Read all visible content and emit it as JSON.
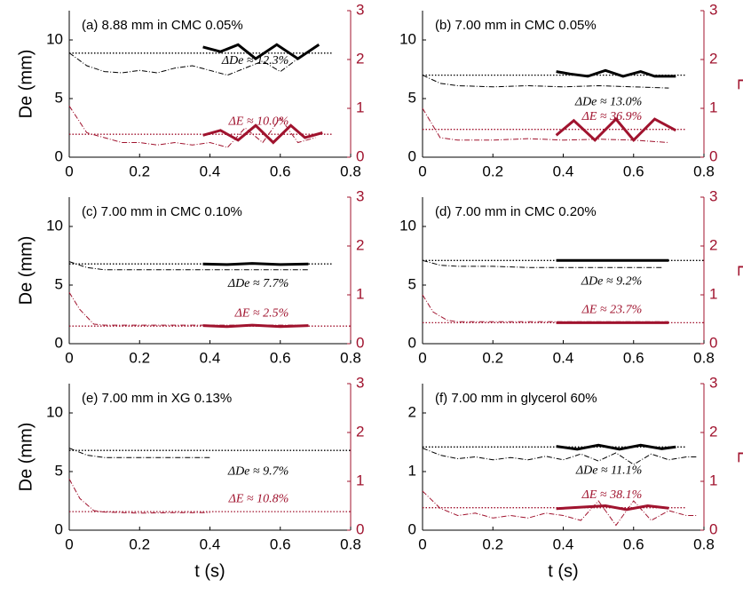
{
  "chart_data": [
    {
      "type": "line",
      "title": "(a) 8.88 mm in CMC 0.05%",
      "ylabel": "De (mm)",
      "xlim": [
        0,
        0.8
      ],
      "xticks": [
        0,
        0.2,
        0.4,
        0.6,
        0.8
      ],
      "ylim": [
        0,
        12.5
      ],
      "yticks": [
        0,
        5,
        10
      ],
      "y2lim": [
        0,
        3
      ],
      "y2ticks": [
        0,
        1,
        2,
        3
      ],
      "annotations": [
        "ΔDe ≈ 12.3%",
        "ΔE ≈ 10.0%"
      ],
      "series": [
        {
          "axis": "y",
          "style": "dashdot",
          "color": "#000000",
          "x": [
            0,
            0.05,
            0.1,
            0.15,
            0.2,
            0.25,
            0.3,
            0.35,
            0.4,
            0.45,
            0.5,
            0.55,
            0.6,
            0.65,
            0.7
          ],
          "values": [
            8.9,
            7.8,
            7.3,
            7.2,
            7.4,
            7.2,
            7.6,
            7.8,
            7.4,
            7.0,
            7.6,
            8.2,
            7.3,
            8.4,
            9.4
          ]
        },
        {
          "axis": "y",
          "style": "dotted",
          "color": "#000000",
          "x": [
            0,
            0.75
          ],
          "values": [
            8.88,
            8.88
          ]
        },
        {
          "axis": "y",
          "style": "thick",
          "color": "#000000",
          "x": [
            0.38,
            0.43,
            0.48,
            0.53,
            0.59,
            0.65,
            0.71
          ],
          "values": [
            9.4,
            9.0,
            9.6,
            8.4,
            9.6,
            8.4,
            9.6
          ]
        },
        {
          "axis": "y2",
          "style": "dashdot",
          "color": "#a0132e",
          "x": [
            0,
            0.05,
            0.1,
            0.15,
            0.2,
            0.25,
            0.3,
            0.35,
            0.4,
            0.45,
            0.5,
            0.55,
            0.6,
            0.65,
            0.7
          ],
          "values": [
            1.05,
            0.5,
            0.4,
            0.3,
            0.3,
            0.25,
            0.3,
            0.25,
            0.3,
            0.2,
            0.6,
            0.3,
            0.8,
            0.3,
            0.4
          ]
        },
        {
          "axis": "y2",
          "style": "dotted",
          "color": "#a0132e",
          "x": [
            0,
            0.75
          ],
          "values": [
            0.47,
            0.47
          ]
        },
        {
          "axis": "y2",
          "style": "thick",
          "color": "#a0132e",
          "x": [
            0.38,
            0.43,
            0.48,
            0.53,
            0.58,
            0.63,
            0.67,
            0.72
          ],
          "values": [
            0.45,
            0.55,
            0.35,
            0.65,
            0.3,
            0.65,
            0.4,
            0.5
          ]
        }
      ]
    },
    {
      "type": "line",
      "title": "(b) 7.00 mm in CMC 0.05%",
      "y2label": "E",
      "xlim": [
        0,
        0.8
      ],
      "xticks": [
        0,
        0.2,
        0.4,
        0.6,
        0.8
      ],
      "ylim": [
        0,
        12.5
      ],
      "yticks": [
        0,
        5,
        10
      ],
      "y2lim": [
        0,
        3
      ],
      "y2ticks": [
        0,
        1,
        2,
        3
      ],
      "annotations": [
        "ΔDe ≈ 13.0%",
        "ΔE ≈ 36.9%"
      ],
      "series": [
        {
          "axis": "y",
          "style": "dashdot",
          "color": "#000000",
          "x": [
            0,
            0.05,
            0.1,
            0.2,
            0.3,
            0.4,
            0.5,
            0.6,
            0.7
          ],
          "values": [
            7.0,
            6.3,
            6.1,
            6.0,
            6.1,
            6.0,
            6.1,
            6.0,
            5.9
          ]
        },
        {
          "axis": "y",
          "style": "dotted",
          "color": "#000000",
          "x": [
            0,
            0.75
          ],
          "values": [
            7.0,
            7.0
          ]
        },
        {
          "axis": "y",
          "style": "thick",
          "color": "#000000",
          "x": [
            0.38,
            0.42,
            0.47,
            0.52,
            0.57,
            0.62,
            0.66,
            0.72
          ],
          "values": [
            7.3,
            7.1,
            6.9,
            7.4,
            6.9,
            7.3,
            6.9,
            6.9
          ]
        },
        {
          "axis": "y2",
          "style": "dashdot",
          "color": "#a0132e",
          "x": [
            0,
            0.05,
            0.1,
            0.2,
            0.3,
            0.4,
            0.5,
            0.6,
            0.7
          ],
          "values": [
            1.0,
            0.4,
            0.35,
            0.35,
            0.38,
            0.35,
            0.37,
            0.35,
            0.3
          ]
        },
        {
          "axis": "y2",
          "style": "dotted",
          "color": "#a0132e",
          "x": [
            0,
            0.75
          ],
          "values": [
            0.57,
            0.57
          ]
        },
        {
          "axis": "y2",
          "style": "thick",
          "color": "#a0132e",
          "x": [
            0.38,
            0.43,
            0.49,
            0.55,
            0.6,
            0.66,
            0.72
          ],
          "values": [
            0.45,
            0.75,
            0.35,
            0.78,
            0.35,
            0.78,
            0.55
          ]
        }
      ]
    },
    {
      "type": "line",
      "title": "(c) 7.00 mm in CMC 0.10%",
      "ylabel": "De (mm)",
      "xlim": [
        0,
        0.8
      ],
      "xticks": [
        0,
        0.2,
        0.4,
        0.6,
        0.8
      ],
      "ylim": [
        0,
        12.5
      ],
      "yticks": [
        0,
        5,
        10
      ],
      "y2lim": [
        0,
        3
      ],
      "y2ticks": [
        0,
        1,
        2,
        3
      ],
      "annotations": [
        "ΔDe ≈ 7.7%",
        "ΔE ≈ 2.5%"
      ],
      "series": [
        {
          "axis": "y",
          "style": "dashdot",
          "color": "#000000",
          "x": [
            0,
            0.05,
            0.1,
            0.2,
            0.3,
            0.4,
            0.5,
            0.6,
            0.68
          ],
          "values": [
            7.0,
            6.5,
            6.3,
            6.3,
            6.3,
            6.3,
            6.3,
            6.3,
            6.3
          ]
        },
        {
          "axis": "y",
          "style": "dotted",
          "color": "#000000",
          "x": [
            0,
            0.75
          ],
          "values": [
            6.8,
            6.8
          ]
        },
        {
          "axis": "y",
          "style": "thick",
          "color": "#000000",
          "x": [
            0.38,
            0.45,
            0.52,
            0.6,
            0.68
          ],
          "values": [
            6.8,
            6.75,
            6.85,
            6.75,
            6.8
          ]
        },
        {
          "axis": "y2",
          "style": "dashdot",
          "color": "#a0132e",
          "x": [
            0,
            0.03,
            0.07,
            0.1,
            0.2,
            0.3,
            0.4,
            0.5,
            0.6,
            0.68
          ],
          "values": [
            1.05,
            0.7,
            0.4,
            0.38,
            0.38,
            0.38,
            0.38,
            0.38,
            0.38,
            0.38
          ]
        },
        {
          "axis": "y2",
          "style": "dotted",
          "color": "#a0132e",
          "x": [
            0,
            0.8
          ],
          "values": [
            0.36,
            0.36
          ]
        },
        {
          "axis": "y2",
          "style": "thick",
          "color": "#a0132e",
          "x": [
            0.38,
            0.45,
            0.52,
            0.6,
            0.68
          ],
          "values": [
            0.37,
            0.35,
            0.38,
            0.35,
            0.37
          ]
        }
      ]
    },
    {
      "type": "line",
      "title": "(d) 7.00 mm in CMC 0.20%",
      "y2label": "E",
      "xlim": [
        0,
        0.8
      ],
      "xticks": [
        0,
        0.2,
        0.4,
        0.6,
        0.8
      ],
      "ylim": [
        0,
        12.5
      ],
      "yticks": [
        0,
        5,
        10
      ],
      "y2lim": [
        0,
        3
      ],
      "y2ticks": [
        0,
        1,
        2,
        3
      ],
      "annotations": [
        "ΔDe ≈ 9.2%",
        "ΔE ≈ 23.7%"
      ],
      "series": [
        {
          "axis": "y",
          "style": "dashdot",
          "color": "#000000",
          "x": [
            0,
            0.05,
            0.1,
            0.2,
            0.3,
            0.4,
            0.5,
            0.6,
            0.68
          ],
          "values": [
            7.1,
            6.7,
            6.6,
            6.6,
            6.5,
            6.5,
            6.5,
            6.5,
            6.5
          ]
        },
        {
          "axis": "y",
          "style": "dotted",
          "color": "#000000",
          "x": [
            0,
            0.8
          ],
          "values": [
            7.1,
            7.1
          ]
        },
        {
          "axis": "y",
          "style": "thick",
          "color": "#000000",
          "x": [
            0.38,
            0.7
          ],
          "values": [
            7.1,
            7.1
          ]
        },
        {
          "axis": "y2",
          "style": "dashdot",
          "color": "#a0132e",
          "x": [
            0,
            0.03,
            0.07,
            0.1,
            0.2,
            0.3,
            0.4,
            0.5,
            0.6,
            0.7
          ],
          "values": [
            1.0,
            0.65,
            0.48,
            0.45,
            0.45,
            0.45,
            0.45,
            0.45,
            0.45,
            0.45
          ]
        },
        {
          "axis": "y2",
          "style": "dotted",
          "color": "#a0132e",
          "x": [
            0,
            0.8
          ],
          "values": [
            0.43,
            0.43
          ]
        },
        {
          "axis": "y2",
          "style": "thick",
          "color": "#a0132e",
          "x": [
            0.38,
            0.7
          ],
          "values": [
            0.43,
            0.43
          ]
        }
      ]
    },
    {
      "type": "line",
      "title": "(e) 7.00 mm in XG 0.13%",
      "ylabel": "De (mm)",
      "xlabel": "t (s)",
      "xlim": [
        0,
        0.8
      ],
      "xticks": [
        0,
        0.2,
        0.4,
        0.6,
        0.8
      ],
      "ylim": [
        0,
        12.5
      ],
      "yticks": [
        0,
        5,
        10
      ],
      "y2lim": [
        0,
        3
      ],
      "y2ticks": [
        0,
        1,
        2,
        3
      ],
      "annotations": [
        "ΔDe ≈ 9.7%",
        "ΔE ≈ 10.8%"
      ],
      "series": [
        {
          "axis": "y",
          "style": "dashdot",
          "color": "#000000",
          "x": [
            0,
            0.05,
            0.1,
            0.2,
            0.3,
            0.4
          ],
          "values": [
            7.0,
            6.4,
            6.2,
            6.2,
            6.2,
            6.2
          ]
        },
        {
          "axis": "y",
          "style": "dotted",
          "color": "#000000",
          "x": [
            0,
            0.8
          ],
          "values": [
            6.8,
            6.8
          ]
        },
        {
          "axis": "y2",
          "style": "dashdot",
          "color": "#a0132e",
          "x": [
            0,
            0.03,
            0.07,
            0.1,
            0.2,
            0.3,
            0.4
          ],
          "values": [
            1.05,
            0.65,
            0.4,
            0.37,
            0.35,
            0.36,
            0.36
          ]
        },
        {
          "axis": "y2",
          "style": "dotted",
          "color": "#a0132e",
          "x": [
            0,
            0.8
          ],
          "values": [
            0.38,
            0.38
          ]
        }
      ]
    },
    {
      "type": "line",
      "title": "(f) 7.00 mm in glycerol 60%",
      "y2label": "E",
      "xlabel": "t (s)",
      "xlim": [
        0,
        0.8
      ],
      "xticks": [
        0,
        0.2,
        0.4,
        0.6,
        0.8
      ],
      "ylim": [
        0,
        2.5
      ],
      "yticks": [
        0,
        1,
        2
      ],
      "y2lim": [
        0,
        3
      ],
      "y2ticks": [
        0,
        1,
        2,
        3
      ],
      "annotations": [
        "ΔDe ≈ 11.1%",
        "ΔE ≈ 38.1%"
      ],
      "series": [
        {
          "axis": "y",
          "style": "dashdot",
          "color": "#000000",
          "x": [
            0,
            0.05,
            0.1,
            0.15,
            0.2,
            0.25,
            0.3,
            0.35,
            0.4,
            0.45,
            0.5,
            0.55,
            0.6,
            0.65,
            0.7,
            0.75,
            0.78
          ],
          "values": [
            1.4,
            1.28,
            1.22,
            1.25,
            1.2,
            1.24,
            1.2,
            1.26,
            1.2,
            1.3,
            1.18,
            1.32,
            1.12,
            1.3,
            1.2,
            1.25,
            1.25
          ]
        },
        {
          "axis": "y",
          "style": "dotted",
          "color": "#000000",
          "x": [
            0,
            0.75
          ],
          "values": [
            1.42,
            1.42
          ]
        },
        {
          "axis": "y",
          "style": "thick",
          "color": "#000000",
          "x": [
            0.38,
            0.44,
            0.5,
            0.56,
            0.62,
            0.68,
            0.72
          ],
          "values": [
            1.43,
            1.38,
            1.45,
            1.38,
            1.45,
            1.39,
            1.42
          ]
        },
        {
          "axis": "y2",
          "style": "dashdot",
          "color": "#a0132e",
          "x": [
            0,
            0.05,
            0.1,
            0.15,
            0.2,
            0.25,
            0.3,
            0.35,
            0.4,
            0.45,
            0.5,
            0.55,
            0.6,
            0.65,
            0.7,
            0.75,
            0.78
          ],
          "values": [
            0.8,
            0.45,
            0.3,
            0.35,
            0.25,
            0.3,
            0.25,
            0.35,
            0.3,
            0.2,
            0.6,
            0.1,
            0.6,
            0.2,
            0.4,
            0.3,
            0.3
          ]
        },
        {
          "axis": "y2",
          "style": "dotted",
          "color": "#a0132e",
          "x": [
            0,
            0.75
          ],
          "values": [
            0.46,
            0.46
          ]
        },
        {
          "axis": "y2",
          "style": "thick",
          "color": "#a0132e",
          "x": [
            0.38,
            0.45,
            0.52,
            0.58,
            0.64,
            0.7
          ],
          "values": [
            0.44,
            0.47,
            0.5,
            0.42,
            0.5,
            0.45
          ]
        }
      ]
    }
  ]
}
